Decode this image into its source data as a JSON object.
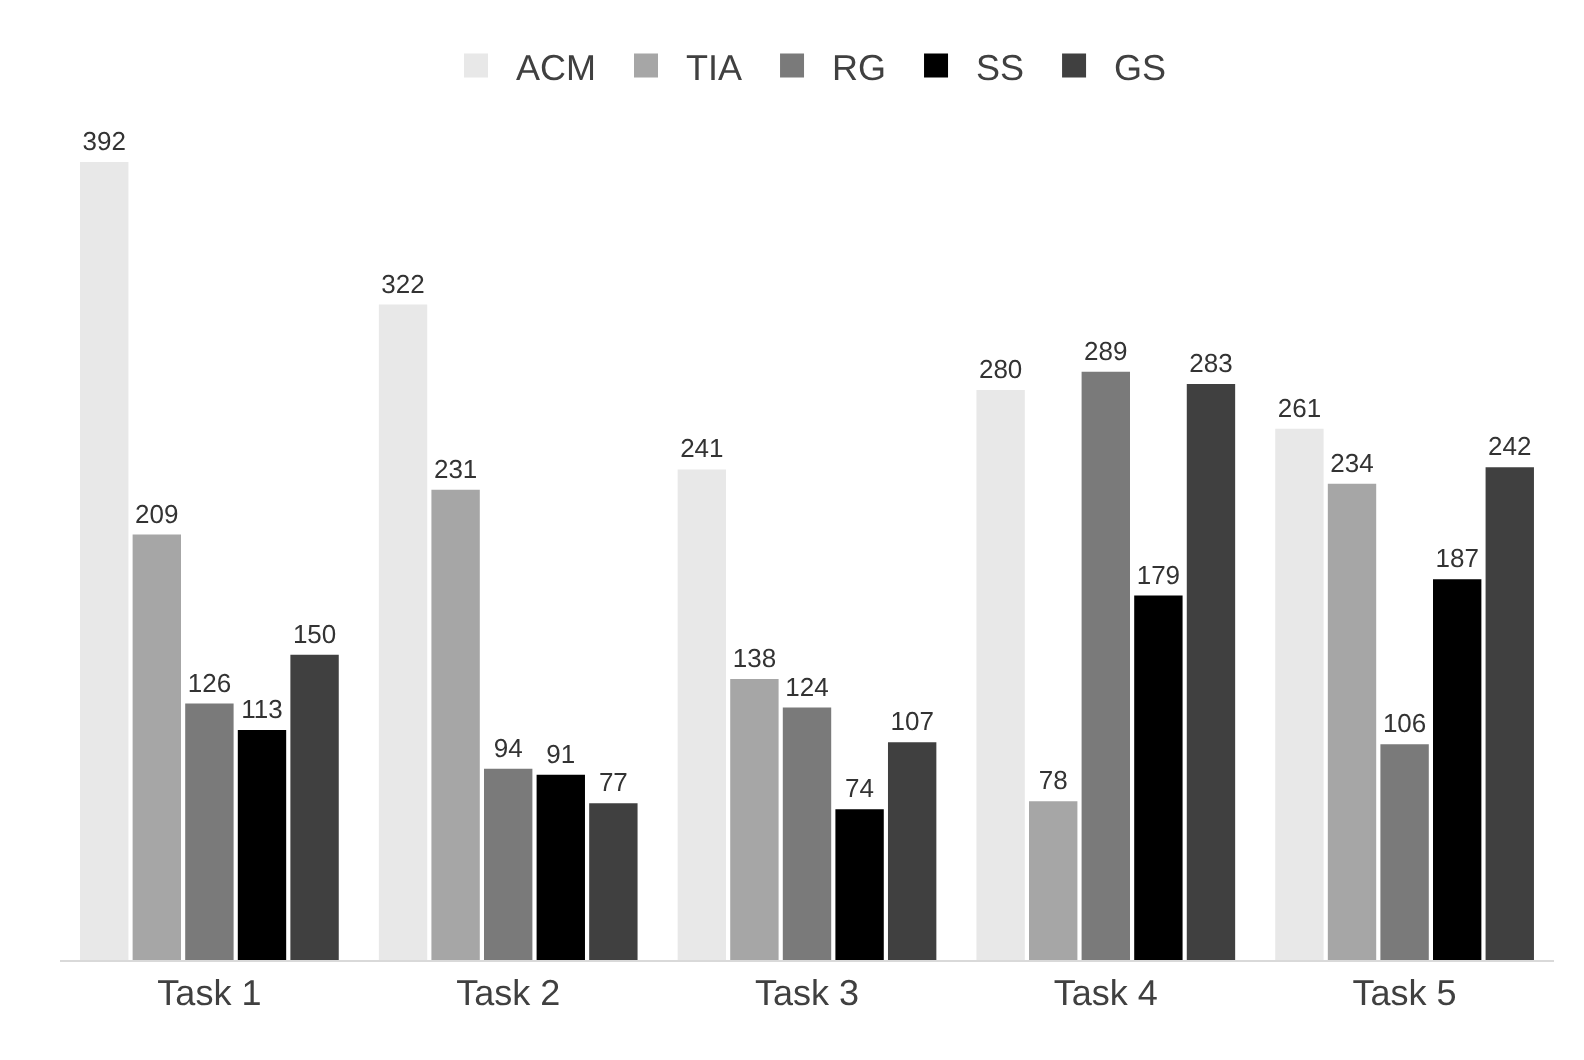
{
  "chart_data": {
    "type": "bar",
    "categories": [
      "Task 1",
      "Task 2",
      "Task 3",
      "Task 4",
      "Task 5"
    ],
    "series": [
      {
        "name": "ACM",
        "color": "#e8e8e8",
        "values": [
          392,
          322,
          241,
          280,
          261
        ]
      },
      {
        "name": "TIA",
        "color": "#a6a6a6",
        "values": [
          209,
          231,
          138,
          78,
          234
        ]
      },
      {
        "name": "RG",
        "color": "#7a7a7a",
        "values": [
          126,
          94,
          124,
          289,
          106
        ]
      },
      {
        "name": "SS",
        "color": "#000000",
        "values": [
          113,
          91,
          74,
          179,
          187
        ]
      },
      {
        "name": "GS",
        "color": "#404040",
        "values": [
          150,
          77,
          107,
          283,
          242
        ]
      }
    ],
    "data_labels": true,
    "legend": "top"
  }
}
